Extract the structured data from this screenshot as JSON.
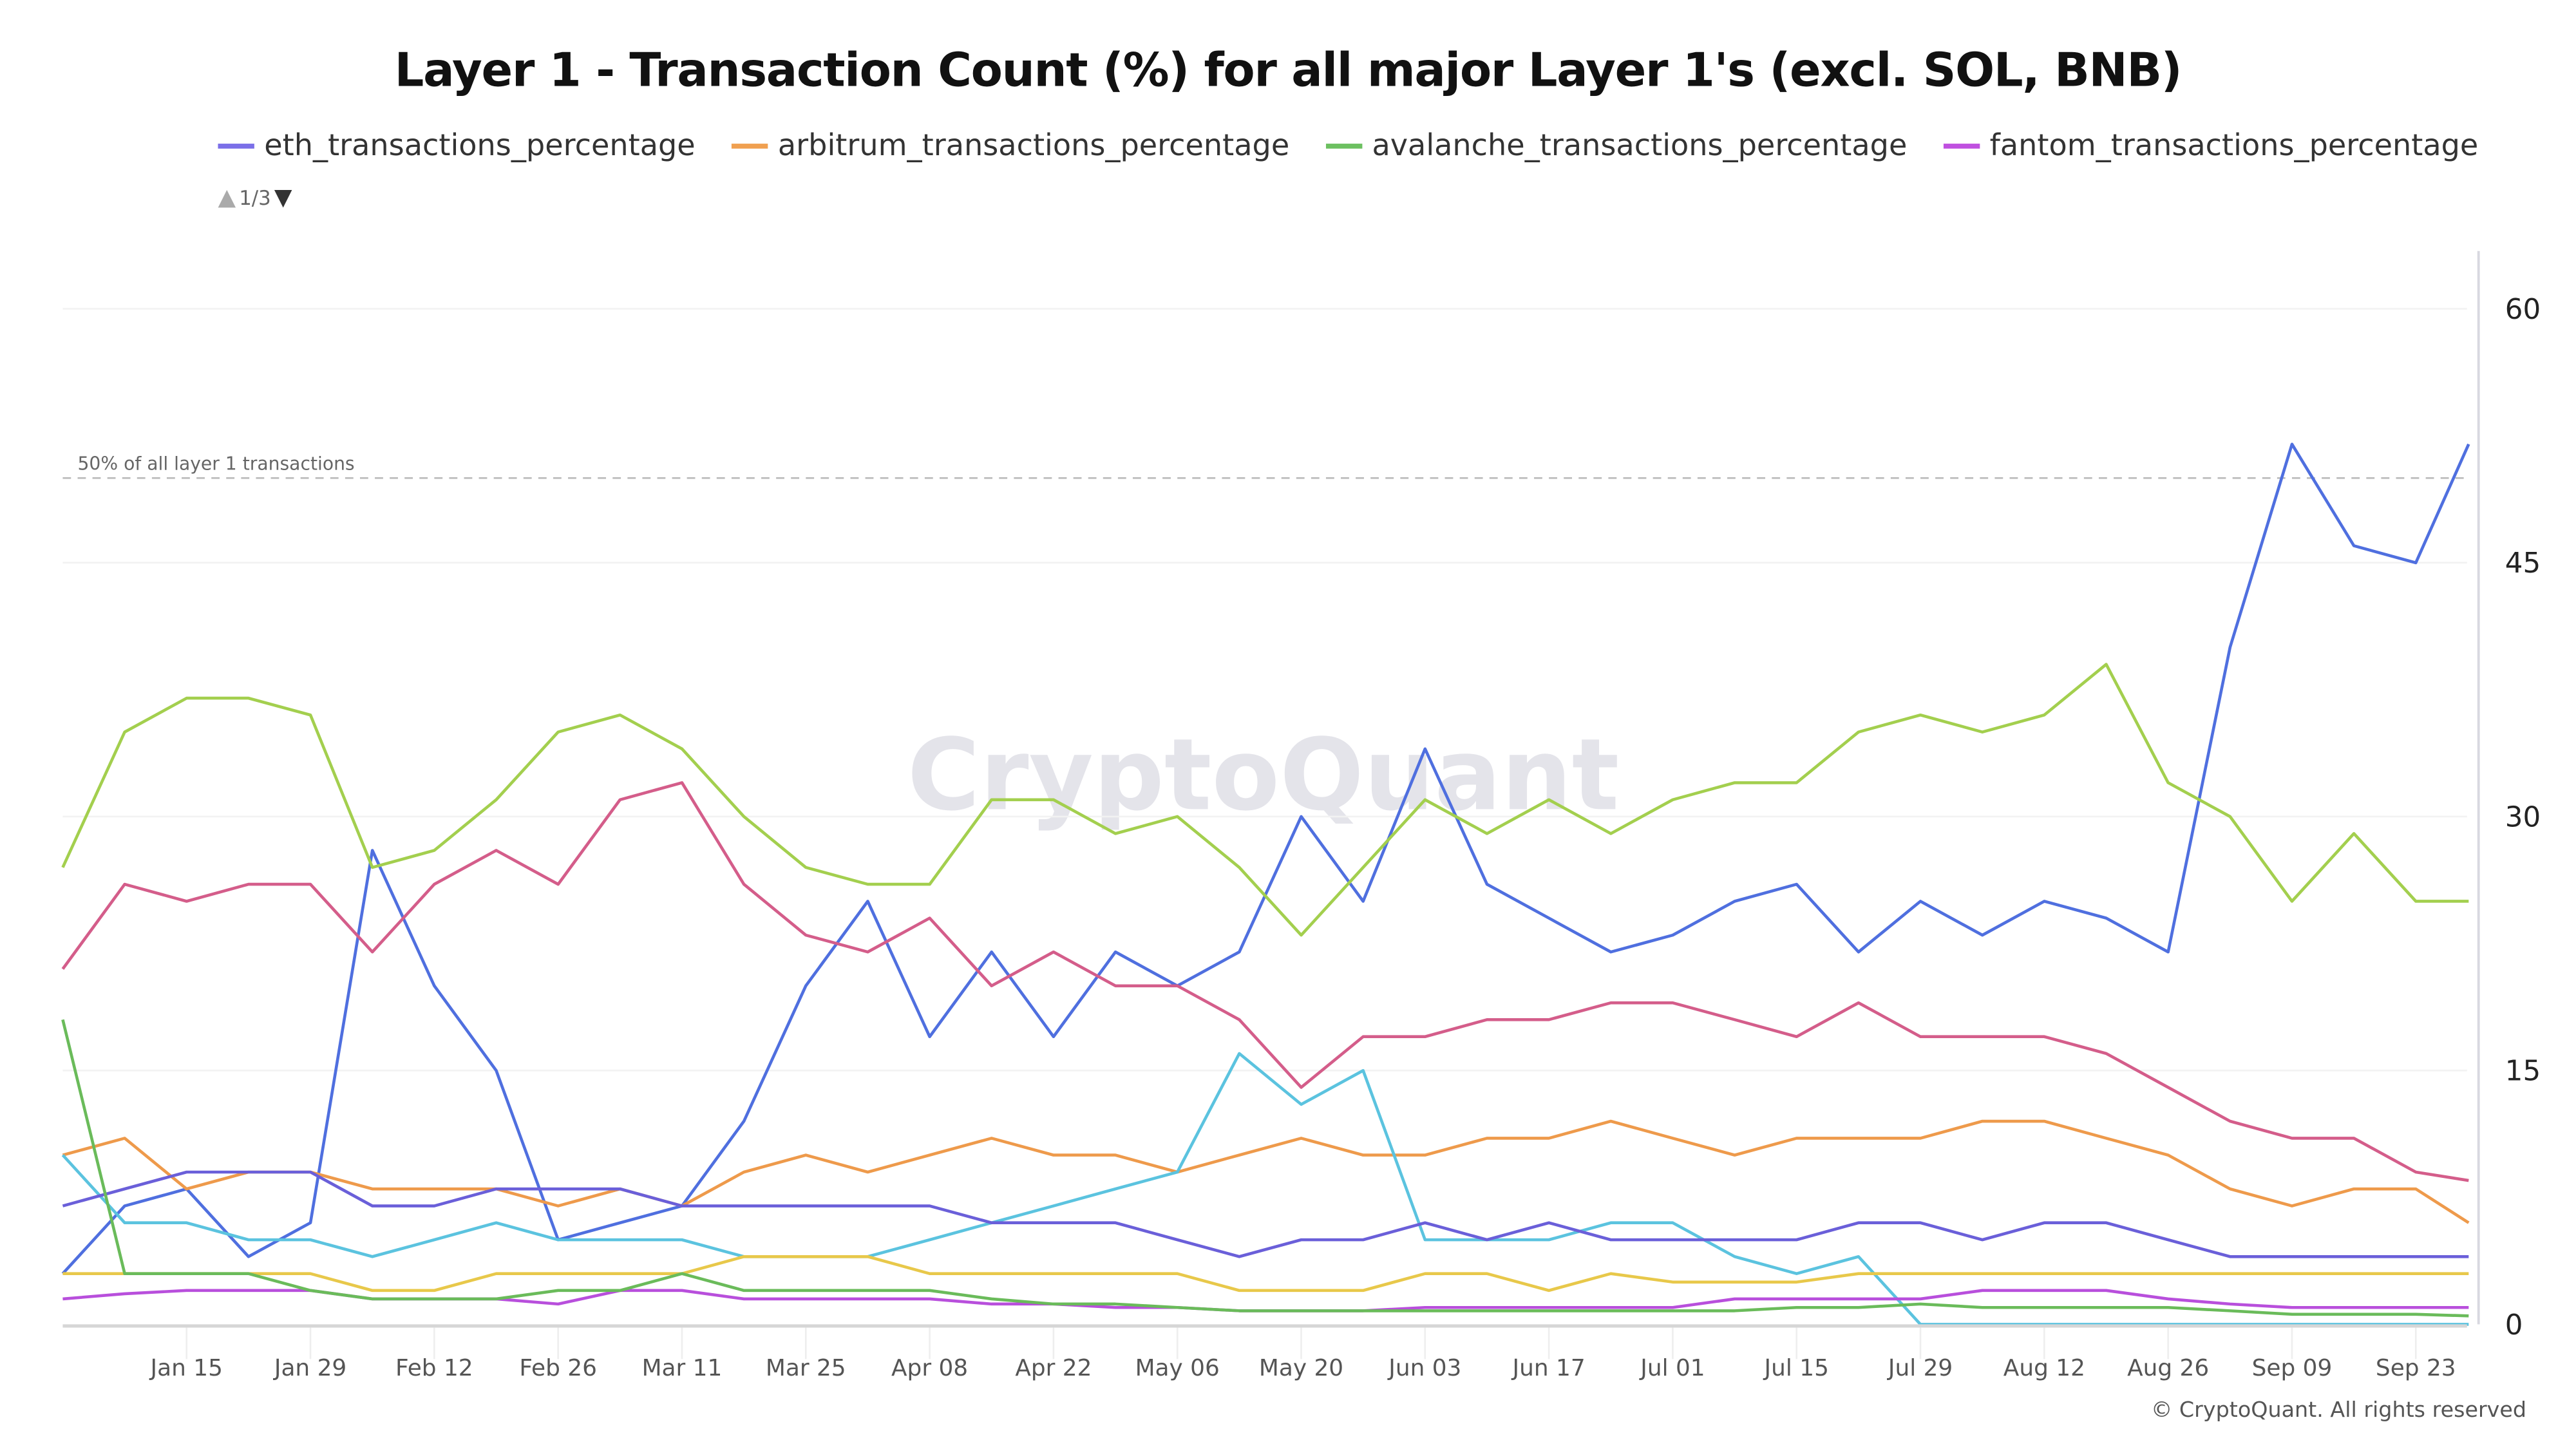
{
  "chart_data": {
    "type": "line",
    "title": "Layer 1 - Transaction Count (%) for all major Layer 1's (excl. SOL, BNB)",
    "legend_page": "1/3",
    "legend_placement": "top-left",
    "x": [
      "Jan 01",
      "Jan 08",
      "Jan 15",
      "Jan 22",
      "Jan 29",
      "Feb 05",
      "Feb 12",
      "Feb 19",
      "Feb 26",
      "Mar 04",
      "Mar 11",
      "Mar 18",
      "Mar 25",
      "Apr 01",
      "Apr 08",
      "Apr 15",
      "Apr 22",
      "Apr 29",
      "May 06",
      "May 13",
      "May 20",
      "May 27",
      "Jun 03",
      "Jun 10",
      "Jun 17",
      "Jun 24",
      "Jul 01",
      "Jul 08",
      "Jul 15",
      "Jul 22",
      "Jul 29",
      "Aug 05",
      "Aug 12",
      "Aug 19",
      "Aug 26",
      "Sep 02",
      "Sep 09",
      "Sep 16",
      "Sep 23",
      "Sep 29"
    ],
    "x_ticks": [
      "Jan 15",
      "Jan 29",
      "Feb 12",
      "Feb 26",
      "Mar 11",
      "Mar 25",
      "Apr 08",
      "Apr 22",
      "May 06",
      "May 20",
      "Jun 03",
      "Jun 17",
      "Jul 01",
      "Jul 15",
      "Jul 29",
      "Aug 12",
      "Aug 26",
      "Sep 09",
      "Sep 23"
    ],
    "y_ticks": [
      0,
      15,
      30,
      45,
      60
    ],
    "ylim": [
      0,
      63
    ],
    "y_axis_side": "right",
    "grid": true,
    "annotation": {
      "value": 50,
      "label": "50% of all layer 1 transactions"
    },
    "series": [
      {
        "color": "#4f6fdf",
        "values": [
          3,
          7,
          8,
          4,
          6,
          28,
          20,
          15,
          5,
          6,
          7,
          12,
          20,
          25,
          17,
          22,
          17,
          22,
          20,
          22,
          30,
          25,
          34,
          26,
          24,
          22,
          23,
          25,
          26,
          22,
          25,
          23,
          25,
          24,
          22,
          40,
          52,
          46,
          45,
          52
        ]
      },
      {
        "color": "#d45d8a",
        "values": [
          21,
          26,
          25,
          26,
          26,
          22,
          26,
          28,
          26,
          31,
          32,
          26,
          23,
          22,
          24,
          20,
          22,
          20,
          20,
          18,
          14,
          17,
          17,
          18,
          18,
          19,
          19,
          18,
          17,
          19,
          17,
          17,
          17,
          16,
          14,
          12,
          11,
          11,
          9,
          8.5
        ]
      },
      {
        "color": "#a3cf4e",
        "values": [
          27,
          35,
          37,
          37,
          36,
          27,
          28,
          31,
          35,
          36,
          34,
          30,
          27,
          26,
          26,
          31,
          31,
          29,
          30,
          27,
          23,
          27,
          31,
          29,
          31,
          29,
          31,
          32,
          32,
          35,
          36,
          35,
          36,
          39,
          32,
          30,
          25,
          29,
          25,
          25
        ]
      },
      {
        "name": "arbitrum_transactions_percentage",
        "color": "#ee9a4b",
        "values": [
          10,
          11,
          8,
          9,
          9,
          8,
          8,
          8,
          7,
          8,
          7,
          9,
          10,
          9,
          10,
          11,
          10,
          10,
          9,
          10,
          11,
          10,
          10,
          11,
          11,
          12,
          11,
          10,
          11,
          11,
          11,
          12,
          12,
          11,
          10,
          8,
          7,
          8,
          8,
          6
        ]
      },
      {
        "color": "#5bc3df",
        "values": [
          10,
          6,
          6,
          5,
          5,
          4,
          5,
          6,
          5,
          5,
          5,
          4,
          4,
          4,
          5,
          6,
          7,
          8,
          9,
          16,
          13,
          15,
          5,
          5,
          5,
          6,
          6,
          4,
          3,
          4,
          0,
          0,
          0,
          0,
          0,
          0,
          0,
          0,
          0,
          0
        ]
      },
      {
        "name": "eth_transactions_percentage",
        "color": "#6a5fd9",
        "values": [
          7,
          8,
          9,
          9,
          9,
          7,
          7,
          8,
          8,
          8,
          7,
          7,
          7,
          7,
          7,
          6,
          6,
          6,
          5,
          4,
          5,
          5,
          6,
          5,
          6,
          5,
          5,
          5,
          5,
          6,
          6,
          5,
          6,
          6,
          5,
          4,
          4,
          4,
          4,
          4
        ]
      },
      {
        "color": "#e8c84a",
        "values": [
          3,
          3,
          3,
          3,
          3,
          2,
          2,
          3,
          3,
          3,
          3,
          4,
          4,
          4,
          3,
          3,
          3,
          3,
          3,
          2,
          2,
          2,
          3,
          3,
          2,
          3,
          2.5,
          2.5,
          2.5,
          3,
          3,
          3,
          3,
          3,
          3,
          3,
          3,
          3,
          3,
          3
        ]
      },
      {
        "name": "fantom_transactions_percentage",
        "color": "#b84fdc",
        "values": [
          1.5,
          1.8,
          2,
          2,
          2,
          1.5,
          1.5,
          1.5,
          1.2,
          2,
          2,
          1.5,
          1.5,
          1.5,
          1.5,
          1.2,
          1.2,
          1,
          1,
          0.8,
          0.8,
          0.8,
          1,
          1,
          1,
          1,
          1,
          1.5,
          1.5,
          1.5,
          1.5,
          2,
          2,
          2,
          1.5,
          1.2,
          1,
          1,
          1,
          1
        ]
      },
      {
        "name": "avalanche_transactions_percentage",
        "color": "#6abb5a",
        "values": [
          18,
          3,
          3,
          3,
          2,
          1.5,
          1.5,
          1.5,
          2,
          2,
          3,
          2,
          2,
          2,
          2,
          1.5,
          1.2,
          1.2,
          1,
          0.8,
          0.8,
          0.8,
          0.8,
          0.8,
          0.8,
          0.8,
          0.8,
          0.8,
          1,
          1,
          1.2,
          1,
          1,
          1,
          1,
          0.8,
          0.6,
          0.6,
          0.6,
          0.5
        ]
      }
    ]
  },
  "legend": [
    {
      "label": "eth_transactions_percentage",
      "color": "#7b6fe8"
    },
    {
      "label": "arbitrum_transactions_percentage",
      "color": "#f0a050"
    },
    {
      "label": "avalanche_transactions_percentage",
      "color": "#6cc060"
    },
    {
      "label": "fantom_transactions_percentage",
      "color": "#c050e0"
    }
  ],
  "watermark": "CryptoQuant",
  "copyright": "© CryptoQuant. All rights reserved"
}
